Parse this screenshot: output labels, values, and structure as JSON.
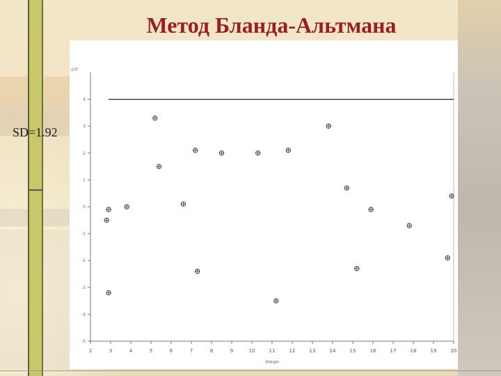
{
  "slide": {
    "title": "Метод Бланда-Альтмана",
    "sd_label": "SD=1.92"
  },
  "colors": {
    "title": "#9b1e1e",
    "accent_bar": "#c8c86a"
  },
  "chart_data": {
    "type": "scatter",
    "xlabel": "mean",
    "ylabel": "diff",
    "xlim": [
      2,
      20
    ],
    "ylim": [
      -5,
      5
    ],
    "x_ticks": [
      2,
      3,
      4,
      5,
      6,
      7,
      8,
      9,
      10,
      11,
      12,
      13,
      14,
      15,
      16,
      17,
      18,
      19,
      20
    ],
    "y_ticks": [
      4,
      3,
      2,
      1,
      0,
      -1,
      -2,
      -3,
      -4,
      -5
    ],
    "y_tick_labels": [
      "4",
      "3",
      "2",
      "1",
      "0",
      "-1",
      "-2",
      "-3",
      "-4",
      "-5"
    ],
    "reference_line_y": 4,
    "grid": false,
    "points": [
      {
        "x": 5.2,
        "y": 3.3
      },
      {
        "x": 13.8,
        "y": 3.0
      },
      {
        "x": 7.2,
        "y": 2.1
      },
      {
        "x": 8.5,
        "y": 2.0
      },
      {
        "x": 10.3,
        "y": 2.0
      },
      {
        "x": 11.8,
        "y": 2.1
      },
      {
        "x": 5.4,
        "y": 1.5
      },
      {
        "x": 14.7,
        "y": 0.7
      },
      {
        "x": 19.9,
        "y": 0.4
      },
      {
        "x": 6.6,
        "y": 0.1
      },
      {
        "x": 3.8,
        "y": 0.0
      },
      {
        "x": 2.9,
        "y": -0.1
      },
      {
        "x": 15.9,
        "y": -0.1
      },
      {
        "x": 2.8,
        "y": -0.5
      },
      {
        "x": 17.8,
        "y": -0.7
      },
      {
        "x": 19.7,
        "y": -1.9
      },
      {
        "x": 15.2,
        "y": -2.3
      },
      {
        "x": 7.3,
        "y": -2.4
      },
      {
        "x": 2.9,
        "y": -3.2
      },
      {
        "x": 11.2,
        "y": -3.5
      }
    ]
  }
}
